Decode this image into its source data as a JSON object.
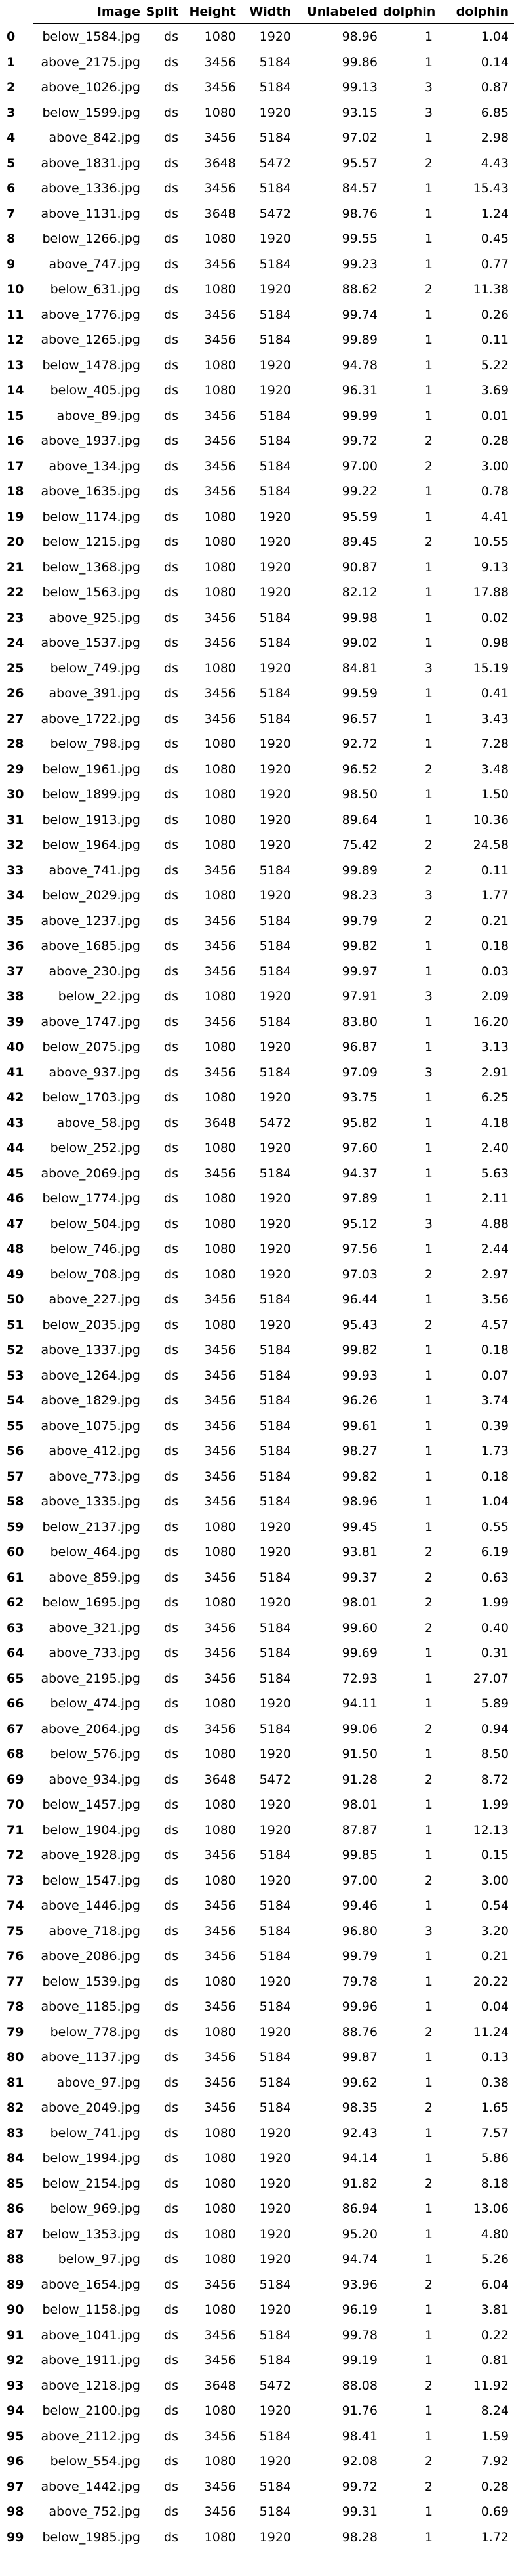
{
  "columns": [
    "",
    "Image",
    "Split",
    "Height",
    "Width",
    "Unlabeled",
    "dolphin",
    "dolphin"
  ],
  "rows": [
    [
      "0",
      "below_1584.jpg",
      "ds",
      "1080",
      "1920",
      "98.96",
      "1",
      "1.04"
    ],
    [
      "1",
      "above_2175.jpg",
      "ds",
      "3456",
      "5184",
      "99.86",
      "1",
      "0.14"
    ],
    [
      "2",
      "above_1026.jpg",
      "ds",
      "3456",
      "5184",
      "99.13",
      "3",
      "0.87"
    ],
    [
      "3",
      "below_1599.jpg",
      "ds",
      "1080",
      "1920",
      "93.15",
      "3",
      "6.85"
    ],
    [
      "4",
      "above_842.jpg",
      "ds",
      "3456",
      "5184",
      "97.02",
      "1",
      "2.98"
    ],
    [
      "5",
      "above_1831.jpg",
      "ds",
      "3648",
      "5472",
      "95.57",
      "2",
      "4.43"
    ],
    [
      "6",
      "above_1336.jpg",
      "ds",
      "3456",
      "5184",
      "84.57",
      "1",
      "15.43"
    ],
    [
      "7",
      "above_1131.jpg",
      "ds",
      "3648",
      "5472",
      "98.76",
      "1",
      "1.24"
    ],
    [
      "8",
      "below_1266.jpg",
      "ds",
      "1080",
      "1920",
      "99.55",
      "1",
      "0.45"
    ],
    [
      "9",
      "above_747.jpg",
      "ds",
      "3456",
      "5184",
      "99.23",
      "1",
      "0.77"
    ],
    [
      "10",
      "below_631.jpg",
      "ds",
      "1080",
      "1920",
      "88.62",
      "2",
      "11.38"
    ],
    [
      "11",
      "above_1776.jpg",
      "ds",
      "3456",
      "5184",
      "99.74",
      "1",
      "0.26"
    ],
    [
      "12",
      "above_1265.jpg",
      "ds",
      "3456",
      "5184",
      "99.89",
      "1",
      "0.11"
    ],
    [
      "13",
      "below_1478.jpg",
      "ds",
      "1080",
      "1920",
      "94.78",
      "1",
      "5.22"
    ],
    [
      "14",
      "below_405.jpg",
      "ds",
      "1080",
      "1920",
      "96.31",
      "1",
      "3.69"
    ],
    [
      "15",
      "above_89.jpg",
      "ds",
      "3456",
      "5184",
      "99.99",
      "1",
      "0.01"
    ],
    [
      "16",
      "above_1937.jpg",
      "ds",
      "3456",
      "5184",
      "99.72",
      "2",
      "0.28"
    ],
    [
      "17",
      "above_134.jpg",
      "ds",
      "3456",
      "5184",
      "97.00",
      "2",
      "3.00"
    ],
    [
      "18",
      "above_1635.jpg",
      "ds",
      "3456",
      "5184",
      "99.22",
      "1",
      "0.78"
    ],
    [
      "19",
      "below_1174.jpg",
      "ds",
      "1080",
      "1920",
      "95.59",
      "1",
      "4.41"
    ],
    [
      "20",
      "below_1215.jpg",
      "ds",
      "1080",
      "1920",
      "89.45",
      "2",
      "10.55"
    ],
    [
      "21",
      "below_1368.jpg",
      "ds",
      "1080",
      "1920",
      "90.87",
      "1",
      "9.13"
    ],
    [
      "22",
      "below_1563.jpg",
      "ds",
      "1080",
      "1920",
      "82.12",
      "1",
      "17.88"
    ],
    [
      "23",
      "above_925.jpg",
      "ds",
      "3456",
      "5184",
      "99.98",
      "1",
      "0.02"
    ],
    [
      "24",
      "above_1537.jpg",
      "ds",
      "3456",
      "5184",
      "99.02",
      "1",
      "0.98"
    ],
    [
      "25",
      "below_749.jpg",
      "ds",
      "1080",
      "1920",
      "84.81",
      "3",
      "15.19"
    ],
    [
      "26",
      "above_391.jpg",
      "ds",
      "3456",
      "5184",
      "99.59",
      "1",
      "0.41"
    ],
    [
      "27",
      "above_1722.jpg",
      "ds",
      "3456",
      "5184",
      "96.57",
      "1",
      "3.43"
    ],
    [
      "28",
      "below_798.jpg",
      "ds",
      "1080",
      "1920",
      "92.72",
      "1",
      "7.28"
    ],
    [
      "29",
      "below_1961.jpg",
      "ds",
      "1080",
      "1920",
      "96.52",
      "2",
      "3.48"
    ],
    [
      "30",
      "below_1899.jpg",
      "ds",
      "1080",
      "1920",
      "98.50",
      "1",
      "1.50"
    ],
    [
      "31",
      "below_1913.jpg",
      "ds",
      "1080",
      "1920",
      "89.64",
      "1",
      "10.36"
    ],
    [
      "32",
      "below_1964.jpg",
      "ds",
      "1080",
      "1920",
      "75.42",
      "2",
      "24.58"
    ],
    [
      "33",
      "above_741.jpg",
      "ds",
      "3456",
      "5184",
      "99.89",
      "2",
      "0.11"
    ],
    [
      "34",
      "below_2029.jpg",
      "ds",
      "1080",
      "1920",
      "98.23",
      "3",
      "1.77"
    ],
    [
      "35",
      "above_1237.jpg",
      "ds",
      "3456",
      "5184",
      "99.79",
      "2",
      "0.21"
    ],
    [
      "36",
      "above_1685.jpg",
      "ds",
      "3456",
      "5184",
      "99.82",
      "1",
      "0.18"
    ],
    [
      "37",
      "above_230.jpg",
      "ds",
      "3456",
      "5184",
      "99.97",
      "1",
      "0.03"
    ],
    [
      "38",
      "below_22.jpg",
      "ds",
      "1080",
      "1920",
      "97.91",
      "3",
      "2.09"
    ],
    [
      "39",
      "above_1747.jpg",
      "ds",
      "3456",
      "5184",
      "83.80",
      "1",
      "16.20"
    ],
    [
      "40",
      "below_2075.jpg",
      "ds",
      "1080",
      "1920",
      "96.87",
      "1",
      "3.13"
    ],
    [
      "41",
      "above_937.jpg",
      "ds",
      "3456",
      "5184",
      "97.09",
      "3",
      "2.91"
    ],
    [
      "42",
      "below_1703.jpg",
      "ds",
      "1080",
      "1920",
      "93.75",
      "1",
      "6.25"
    ],
    [
      "43",
      "above_58.jpg",
      "ds",
      "3648",
      "5472",
      "95.82",
      "1",
      "4.18"
    ],
    [
      "44",
      "below_252.jpg",
      "ds",
      "1080",
      "1920",
      "97.60",
      "1",
      "2.40"
    ],
    [
      "45",
      "above_2069.jpg",
      "ds",
      "3456",
      "5184",
      "94.37",
      "1",
      "5.63"
    ],
    [
      "46",
      "below_1774.jpg",
      "ds",
      "1080",
      "1920",
      "97.89",
      "1",
      "2.11"
    ],
    [
      "47",
      "below_504.jpg",
      "ds",
      "1080",
      "1920",
      "95.12",
      "3",
      "4.88"
    ],
    [
      "48",
      "below_746.jpg",
      "ds",
      "1080",
      "1920",
      "97.56",
      "1",
      "2.44"
    ],
    [
      "49",
      "below_708.jpg",
      "ds",
      "1080",
      "1920",
      "97.03",
      "2",
      "2.97"
    ],
    [
      "50",
      "above_227.jpg",
      "ds",
      "3456",
      "5184",
      "96.44",
      "1",
      "3.56"
    ],
    [
      "51",
      "below_2035.jpg",
      "ds",
      "1080",
      "1920",
      "95.43",
      "2",
      "4.57"
    ],
    [
      "52",
      "above_1337.jpg",
      "ds",
      "3456",
      "5184",
      "99.82",
      "1",
      "0.18"
    ],
    [
      "53",
      "above_1264.jpg",
      "ds",
      "3456",
      "5184",
      "99.93",
      "1",
      "0.07"
    ],
    [
      "54",
      "above_1829.jpg",
      "ds",
      "3456",
      "5184",
      "96.26",
      "1",
      "3.74"
    ],
    [
      "55",
      "above_1075.jpg",
      "ds",
      "3456",
      "5184",
      "99.61",
      "1",
      "0.39"
    ],
    [
      "56",
      "above_412.jpg",
      "ds",
      "3456",
      "5184",
      "98.27",
      "1",
      "1.73"
    ],
    [
      "57",
      "above_773.jpg",
      "ds",
      "3456",
      "5184",
      "99.82",
      "1",
      "0.18"
    ],
    [
      "58",
      "above_1335.jpg",
      "ds",
      "3456",
      "5184",
      "98.96",
      "1",
      "1.04"
    ],
    [
      "59",
      "below_2137.jpg",
      "ds",
      "1080",
      "1920",
      "99.45",
      "1",
      "0.55"
    ],
    [
      "60",
      "below_464.jpg",
      "ds",
      "1080",
      "1920",
      "93.81",
      "2",
      "6.19"
    ],
    [
      "61",
      "above_859.jpg",
      "ds",
      "3456",
      "5184",
      "99.37",
      "2",
      "0.63"
    ],
    [
      "62",
      "below_1695.jpg",
      "ds",
      "1080",
      "1920",
      "98.01",
      "2",
      "1.99"
    ],
    [
      "63",
      "above_321.jpg",
      "ds",
      "3456",
      "5184",
      "99.60",
      "2",
      "0.40"
    ],
    [
      "64",
      "above_733.jpg",
      "ds",
      "3456",
      "5184",
      "99.69",
      "1",
      "0.31"
    ],
    [
      "65",
      "above_2195.jpg",
      "ds",
      "3456",
      "5184",
      "72.93",
      "1",
      "27.07"
    ],
    [
      "66",
      "below_474.jpg",
      "ds",
      "1080",
      "1920",
      "94.11",
      "1",
      "5.89"
    ],
    [
      "67",
      "above_2064.jpg",
      "ds",
      "3456",
      "5184",
      "99.06",
      "2",
      "0.94"
    ],
    [
      "68",
      "below_576.jpg",
      "ds",
      "1080",
      "1920",
      "91.50",
      "1",
      "8.50"
    ],
    [
      "69",
      "above_934.jpg",
      "ds",
      "3648",
      "5472",
      "91.28",
      "2",
      "8.72"
    ],
    [
      "70",
      "below_1457.jpg",
      "ds",
      "1080",
      "1920",
      "98.01",
      "1",
      "1.99"
    ],
    [
      "71",
      "below_1904.jpg",
      "ds",
      "1080",
      "1920",
      "87.87",
      "1",
      "12.13"
    ],
    [
      "72",
      "above_1928.jpg",
      "ds",
      "3456",
      "5184",
      "99.85",
      "1",
      "0.15"
    ],
    [
      "73",
      "below_1547.jpg",
      "ds",
      "1080",
      "1920",
      "97.00",
      "2",
      "3.00"
    ],
    [
      "74",
      "above_1446.jpg",
      "ds",
      "3456",
      "5184",
      "99.46",
      "1",
      "0.54"
    ],
    [
      "75",
      "above_718.jpg",
      "ds",
      "3456",
      "5184",
      "96.80",
      "3",
      "3.20"
    ],
    [
      "76",
      "above_2086.jpg",
      "ds",
      "3456",
      "5184",
      "99.79",
      "1",
      "0.21"
    ],
    [
      "77",
      "below_1539.jpg",
      "ds",
      "1080",
      "1920",
      "79.78",
      "1",
      "20.22"
    ],
    [
      "78",
      "above_1185.jpg",
      "ds",
      "3456",
      "5184",
      "99.96",
      "1",
      "0.04"
    ],
    [
      "79",
      "below_778.jpg",
      "ds",
      "1080",
      "1920",
      "88.76",
      "2",
      "11.24"
    ],
    [
      "80",
      "above_1137.jpg",
      "ds",
      "3456",
      "5184",
      "99.87",
      "1",
      "0.13"
    ],
    [
      "81",
      "above_97.jpg",
      "ds",
      "3456",
      "5184",
      "99.62",
      "1",
      "0.38"
    ],
    [
      "82",
      "above_2049.jpg",
      "ds",
      "3456",
      "5184",
      "98.35",
      "2",
      "1.65"
    ],
    [
      "83",
      "below_741.jpg",
      "ds",
      "1080",
      "1920",
      "92.43",
      "1",
      "7.57"
    ],
    [
      "84",
      "below_1994.jpg",
      "ds",
      "1080",
      "1920",
      "94.14",
      "1",
      "5.86"
    ],
    [
      "85",
      "below_2154.jpg",
      "ds",
      "1080",
      "1920",
      "91.82",
      "2",
      "8.18"
    ],
    [
      "86",
      "below_969.jpg",
      "ds",
      "1080",
      "1920",
      "86.94",
      "1",
      "13.06"
    ],
    [
      "87",
      "below_1353.jpg",
      "ds",
      "1080",
      "1920",
      "95.20",
      "1",
      "4.80"
    ],
    [
      "88",
      "below_97.jpg",
      "ds",
      "1080",
      "1920",
      "94.74",
      "1",
      "5.26"
    ],
    [
      "89",
      "above_1654.jpg",
      "ds",
      "3456",
      "5184",
      "93.96",
      "2",
      "6.04"
    ],
    [
      "90",
      "below_1158.jpg",
      "ds",
      "1080",
      "1920",
      "96.19",
      "1",
      "3.81"
    ],
    [
      "91",
      "above_1041.jpg",
      "ds",
      "3456",
      "5184",
      "99.78",
      "1",
      "0.22"
    ],
    [
      "92",
      "above_1911.jpg",
      "ds",
      "3456",
      "5184",
      "99.19",
      "1",
      "0.81"
    ],
    [
      "93",
      "above_1218.jpg",
      "ds",
      "3648",
      "5472",
      "88.08",
      "2",
      "11.92"
    ],
    [
      "94",
      "below_2100.jpg",
      "ds",
      "1080",
      "1920",
      "91.76",
      "1",
      "8.24"
    ],
    [
      "95",
      "above_2112.jpg",
      "ds",
      "3456",
      "5184",
      "98.41",
      "1",
      "1.59"
    ],
    [
      "96",
      "below_554.jpg",
      "ds",
      "1080",
      "1920",
      "92.08",
      "2",
      "7.92"
    ],
    [
      "97",
      "above_1442.jpg",
      "ds",
      "3456",
      "5184",
      "99.72",
      "2",
      "0.28"
    ],
    [
      "98",
      "above_752.jpg",
      "ds",
      "3456",
      "5184",
      "99.31",
      "1",
      "0.69"
    ],
    [
      "99",
      "below_1985.jpg",
      "ds",
      "1080",
      "1920",
      "98.28",
      "1",
      "1.72"
    ]
  ]
}
